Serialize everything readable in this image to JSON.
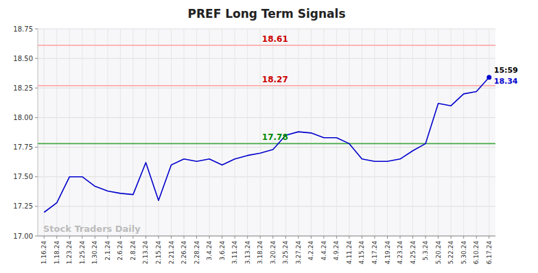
{
  "chart_data": {
    "type": "line",
    "title": "PREF Long Term Signals",
    "categories": [
      "1.16.24",
      "1.18.24",
      "1.23.24",
      "1.25.24",
      "1.30.24",
      "2.1.24",
      "2.6.24",
      "2.8.24",
      "2.13.24",
      "2.15.24",
      "2.21.24",
      "2.26.24",
      "2.28.24",
      "3.4.24",
      "3.6.24",
      "3.11.24",
      "3.13.24",
      "3.18.24",
      "3.20.24",
      "3.25.24",
      "3.27.24",
      "4.2.24",
      "4.4.24",
      "4.9.24",
      "4.11.24",
      "4.15.24",
      "4.17.24",
      "4.19.24",
      "4.23.24",
      "4.25.24",
      "5.3.24",
      "5.20.24",
      "5.22.24",
      "5.30.24",
      "6.10.24",
      "6.17.24"
    ],
    "values": [
      17.2,
      17.28,
      17.5,
      17.5,
      17.42,
      17.38,
      17.36,
      17.35,
      17.62,
      17.3,
      17.6,
      17.65,
      17.63,
      17.65,
      17.6,
      17.65,
      17.68,
      17.7,
      17.73,
      17.85,
      17.88,
      17.87,
      17.83,
      17.83,
      17.78,
      17.65,
      17.63,
      17.63,
      17.65,
      17.72,
      17.78,
      18.12,
      18.1,
      18.2,
      18.22,
      18.34
    ],
    "color": "#0000cc",
    "ylim": [
      17.0,
      18.75
    ],
    "yticks": [
      {
        "value": 17.0,
        "label": "17.00"
      },
      17.25,
      {
        "value": 17.5,
        "label": "17.50"
      },
      17.75,
      {
        "value": 18.0,
        "label": "18.00"
      },
      18.25,
      {
        "value": 18.5,
        "label": "18.50"
      },
      18.75
    ],
    "grid": true,
    "hlines": [
      {
        "value": 17.78,
        "label": "17.78",
        "color": "#44aa44",
        "label_color": "#008800"
      },
      {
        "value": 18.27,
        "label": "18.27",
        "color": "#ffaaaa",
        "label_color": "#cc0000"
      },
      {
        "value": 18.61,
        "label": "18.61",
        "color": "#ffaaaa",
        "label_color": "#cc0000"
      }
    ],
    "last_point": {
      "time": "15:59",
      "label": "18.34"
    },
    "watermark": "Stock Traders Daily"
  }
}
